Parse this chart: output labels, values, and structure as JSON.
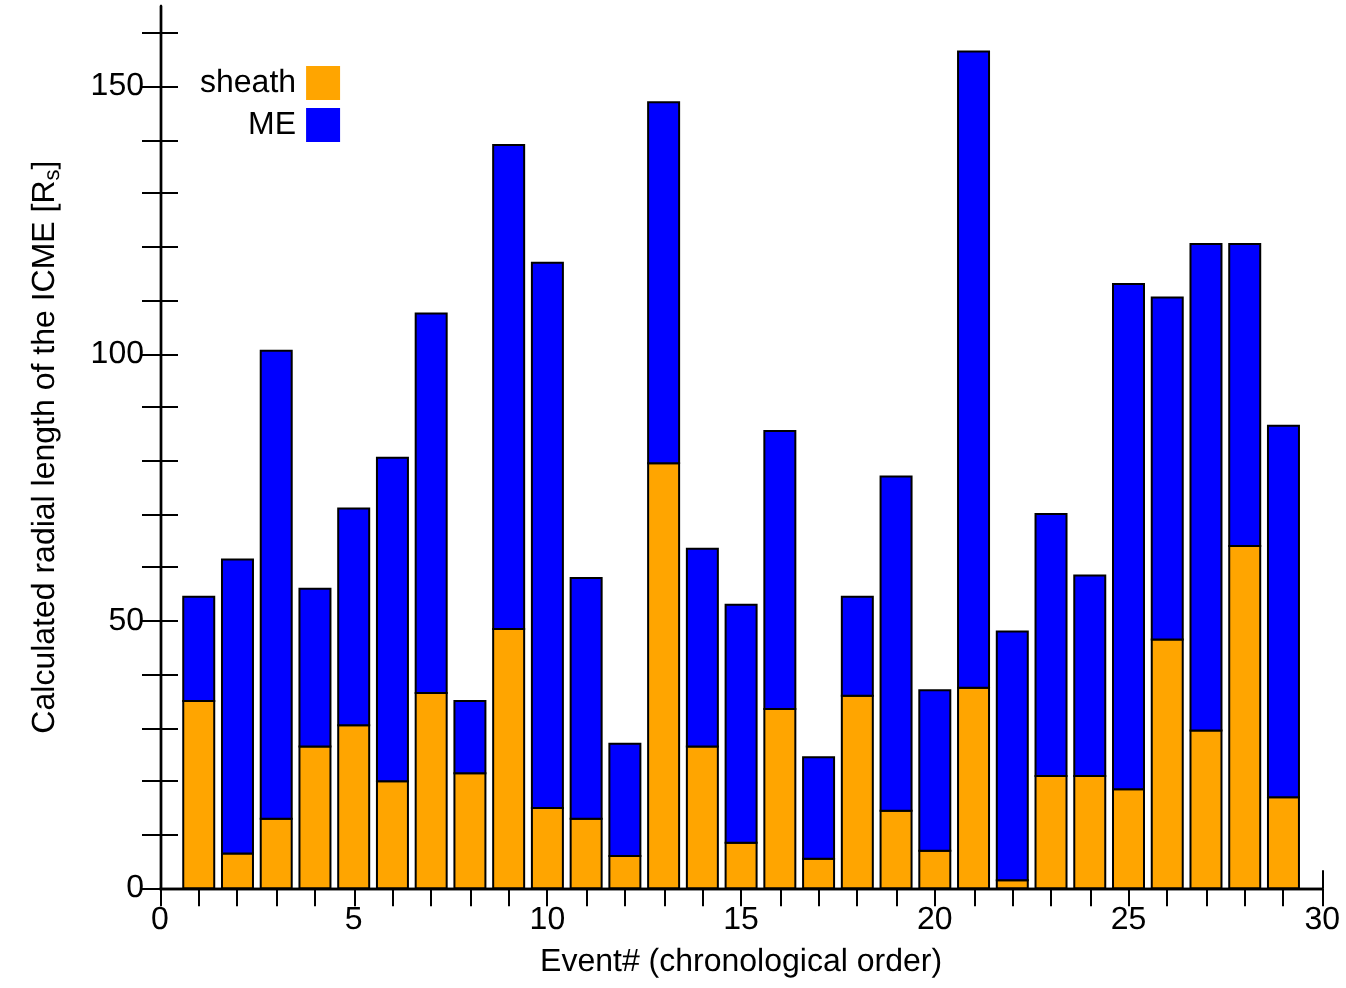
{
  "chart_data": {
    "type": "bar",
    "stacked": true,
    "xlabel": "Event# (chronological order)",
    "ylabel": "Calculated radial length of the ICME [R$_{s}$]",
    "x": [
      1,
      2,
      3,
      4,
      5,
      6,
      7,
      8,
      9,
      10,
      11,
      12,
      13,
      14,
      15,
      16,
      17,
      18,
      19,
      20,
      21,
      22,
      23,
      24,
      25,
      26,
      27,
      28,
      29
    ],
    "series": [
      {
        "name": "sheath",
        "color": "#ffa500",
        "values": [
          35,
          6.5,
          13,
          26.5,
          30.5,
          20,
          36.5,
          21.5,
          48.5,
          15,
          13,
          6,
          79.5,
          26.5,
          8.5,
          33.5,
          5.5,
          36,
          14.5,
          7,
          37.5,
          1.5,
          21,
          21,
          18.5,
          46.5,
          29.5,
          64,
          17
        ]
      },
      {
        "name": "ME",
        "color": "#0000ff",
        "values": [
          19.5,
          55,
          87.5,
          29.5,
          40.5,
          60.5,
          71,
          13.5,
          90.5,
          102,
          45,
          21,
          67.5,
          37,
          44.5,
          52,
          19,
          18.5,
          62.5,
          30,
          119,
          46.5,
          49,
          37.5,
          94.5,
          64,
          91,
          56.5,
          69.5
        ]
      }
    ],
    "xlim": [
      0,
      30
    ],
    "xticks": [
      0,
      {
        "value": 1,
        "label": null
      },
      {
        "value": 2,
        "label": null
      },
      {
        "value": 3,
        "label": null
      },
      {
        "value": 4,
        "label": null
      },
      5,
      {
        "value": 6,
        "label": null
      },
      {
        "value": 7,
        "label": null
      },
      {
        "value": 8,
        "label": null
      },
      {
        "value": 9,
        "label": null
      },
      10,
      {
        "value": 11,
        "label": null
      },
      {
        "value": 12,
        "label": null
      },
      {
        "value": 13,
        "label": null
      },
      {
        "value": 14,
        "label": null
      },
      15,
      {
        "value": 16,
        "label": null
      },
      {
        "value": 17,
        "label": null
      },
      {
        "value": 18,
        "label": null
      },
      {
        "value": 19,
        "label": null
      },
      20,
      {
        "value": 21,
        "label": null
      },
      {
        "value": 22,
        "label": null
      },
      {
        "value": 23,
        "label": null
      },
      {
        "value": 24,
        "label": null
      },
      25,
      {
        "value": 26,
        "label": null
      },
      {
        "value": 27,
        "label": null
      },
      {
        "value": 28,
        "label": null
      },
      {
        "value": 29,
        "label": null
      },
      30
    ],
    "ylim": [
      0,
      165
    ],
    "yticks": [
      0,
      {
        "value": 10,
        "label": null
      },
      {
        "value": 20,
        "label": null
      },
      {
        "value": 30,
        "label": null
      },
      {
        "value": 40,
        "label": null
      },
      50,
      {
        "value": 60,
        "label": null
      },
      {
        "value": 70,
        "label": null
      },
      {
        "value": 80,
        "label": null
      },
      {
        "value": 90,
        "label": null
      },
      100,
      {
        "value": 110,
        "label": null
      },
      {
        "value": 120,
        "label": null
      },
      {
        "value": 130,
        "label": null
      },
      {
        "value": 140,
        "label": null
      },
      150,
      {
        "value": 160,
        "label": null
      }
    ],
    "legend": "top left",
    "grid": false
  }
}
